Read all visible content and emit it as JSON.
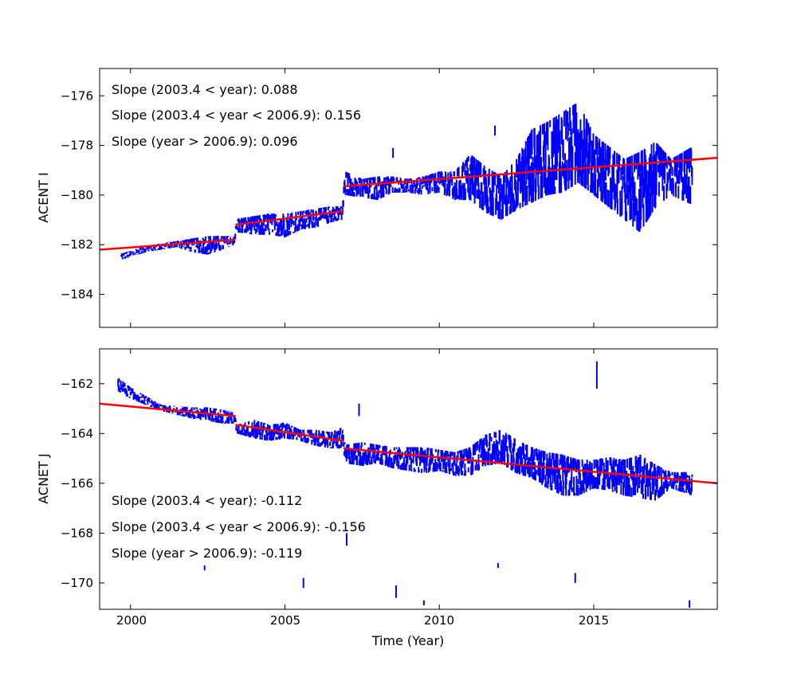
{
  "chart_data": [
    {
      "type": "scatter",
      "title": "",
      "xlabel": "",
      "ylabel": "ACENT I",
      "xlim": [
        1999.0,
        2019.0
      ],
      "ylim": [
        -185.33,
        -174.9
      ],
      "yticks": [
        -176,
        -178,
        -180,
        -182,
        -184
      ],
      "ytick_labels": [
        "−176",
        "−178",
        "−180",
        "−182",
        "−184"
      ],
      "xticks": [
        2000,
        2005,
        2010,
        2015
      ],
      "grid": false,
      "annotations": [
        "Slope (2003.4 < year):  0.088",
        "Slope (2003.4 <  year < 2006.9): 0.156",
        "Slope (year > 2006.9):  0.096"
      ],
      "series_color": "#0000ff",
      "fit_color": "#ff0000",
      "data_ranges": [
        [
          1999.7,
          -182.6,
          -182.3
        ],
        [
          2000.0,
          -182.5,
          -182.2
        ],
        [
          2000.5,
          -182.3,
          -182.0
        ],
        [
          2001.0,
          -182.2,
          -181.9
        ],
        [
          2001.5,
          -182.1,
          -181.8
        ],
        [
          2002.0,
          -182.3,
          -181.7
        ],
        [
          2002.5,
          -182.4,
          -181.6
        ],
        [
          2003.0,
          -182.2,
          -181.6
        ],
        [
          2003.35,
          -182.0,
          -181.6
        ],
        [
          2003.45,
          -181.5,
          -180.9
        ],
        [
          2004.0,
          -181.6,
          -180.8
        ],
        [
          2004.5,
          -181.6,
          -180.7
        ],
        [
          2005.0,
          -181.7,
          -180.7
        ],
        [
          2005.5,
          -181.4,
          -180.6
        ],
        [
          2006.0,
          -181.3,
          -180.5
        ],
        [
          2006.5,
          -181.1,
          -180.4
        ],
        [
          2006.85,
          -181.0,
          -180.4
        ],
        [
          2006.95,
          -180.0,
          -179.0
        ],
        [
          2007.5,
          -180.1,
          -179.3
        ],
        [
          2008.0,
          -180.2,
          -179.2
        ],
        [
          2008.5,
          -179.9,
          -179.2
        ],
        [
          2009.0,
          -179.9,
          -179.3
        ],
        [
          2009.5,
          -180.0,
          -179.2
        ],
        [
          2010.0,
          -179.9,
          -179.0
        ],
        [
          2010.5,
          -180.2,
          -179.0
        ],
        [
          2011.0,
          -180.2,
          -178.3
        ],
        [
          2011.5,
          -180.7,
          -178.8
        ],
        [
          2012.0,
          -181.0,
          -179.2
        ],
        [
          2012.5,
          -180.6,
          -178.5
        ],
        [
          2013.0,
          -180.3,
          -177.3
        ],
        [
          2013.5,
          -180.0,
          -177.0
        ],
        [
          2014.0,
          -179.9,
          -176.6
        ],
        [
          2014.5,
          -179.5,
          -176.2
        ],
        [
          2015.0,
          -180.0,
          -177.5
        ],
        [
          2015.5,
          -180.5,
          -178.0
        ],
        [
          2016.0,
          -181.0,
          -178.5
        ],
        [
          2016.5,
          -181.5,
          -178.2
        ],
        [
          2017.0,
          -180.5,
          -177.8
        ],
        [
          2017.5,
          -180.0,
          -178.5
        ],
        [
          2018.2,
          -180.4,
          -178.0
        ]
      ],
      "outliers": [
        [
          2011.8,
          -177.6,
          -177.2
        ],
        [
          2008.5,
          -178.5,
          -178.1
        ]
      ],
      "fits": [
        [
          1999.0,
          -182.2,
          2003.4,
          -181.8
        ],
        [
          2003.4,
          -181.2,
          2006.9,
          -180.65
        ],
        [
          2006.9,
          -179.65,
          2019.0,
          -178.5
        ]
      ]
    },
    {
      "type": "scatter",
      "title": "",
      "xlabel": "Time (Year)",
      "ylabel": "ACNET J",
      "xlim": [
        1999.0,
        2019.0
      ],
      "ylim": [
        -171.06,
        -160.6
      ],
      "yticks": [
        -162,
        -164,
        -166,
        -168,
        -170
      ],
      "ytick_labels": [
        "−162",
        "−164",
        "−166",
        "−168",
        "−170"
      ],
      "xticks": [
        2000,
        2005,
        2010,
        2015
      ],
      "xtick_labels": [
        "2000",
        "2005",
        "2010",
        "2015"
      ],
      "grid": false,
      "annotations": [
        "Slope (2003.4 < year):  -0.112",
        "Slope (2003.4 <  year < 2006.9): -0.156",
        "Slope (year > 2006.9):  -0.119"
      ],
      "series_color": "#0000ff",
      "fit_color": "#ff0000",
      "data_ranges": [
        [
          1999.6,
          -162.3,
          -161.7
        ],
        [
          2000.0,
          -162.6,
          -162.1
        ],
        [
          2001.0,
          -163.1,
          -162.8
        ],
        [
          2002.0,
          -163.4,
          -162.9
        ],
        [
          2002.5,
          -163.5,
          -162.9
        ],
        [
          2003.0,
          -163.6,
          -163.0
        ],
        [
          2003.35,
          -163.6,
          -163.1
        ],
        [
          2003.45,
          -164.0,
          -163.6
        ],
        [
          2004.0,
          -164.2,
          -163.4
        ],
        [
          2004.5,
          -164.3,
          -163.6
        ],
        [
          2005.0,
          -164.2,
          -163.5
        ],
        [
          2005.5,
          -164.3,
          -163.8
        ],
        [
          2006.0,
          -164.5,
          -163.8
        ],
        [
          2006.5,
          -164.6,
          -163.9
        ],
        [
          2006.85,
          -164.6,
          -163.7
        ],
        [
          2006.95,
          -165.2,
          -164.4
        ],
        [
          2007.5,
          -165.3,
          -164.3
        ],
        [
          2008.0,
          -165.2,
          -164.4
        ],
        [
          2008.5,
          -165.4,
          -164.5
        ],
        [
          2009.0,
          -165.5,
          -164.5
        ],
        [
          2009.5,
          -165.6,
          -164.5
        ],
        [
          2010.0,
          -165.5,
          -164.6
        ],
        [
          2010.5,
          -165.7,
          -164.7
        ],
        [
          2011.0,
          -165.7,
          -164.5
        ],
        [
          2011.5,
          -165.3,
          -164.0
        ],
        [
          2012.0,
          -165.2,
          -163.8
        ],
        [
          2012.5,
          -165.6,
          -164.2
        ],
        [
          2013.0,
          -165.8,
          -164.5
        ],
        [
          2013.5,
          -166.2,
          -164.7
        ],
        [
          2014.0,
          -166.5,
          -164.8
        ],
        [
          2014.5,
          -166.5,
          -165.0
        ],
        [
          2015.0,
          -166.2,
          -165.0
        ],
        [
          2015.5,
          -166.3,
          -164.9
        ],
        [
          2016.0,
          -166.5,
          -165.0
        ],
        [
          2016.5,
          -166.6,
          -164.8
        ],
        [
          2017.0,
          -166.7,
          -165.2
        ],
        [
          2017.5,
          -166.2,
          -165.5
        ],
        [
          2018.2,
          -166.5,
          -165.5
        ]
      ],
      "outliers": [
        [
          2007.4,
          -163.3,
          -162.8
        ],
        [
          2015.1,
          -162.2,
          -161.1
        ],
        [
          2007.0,
          -168.5,
          -168.0
        ],
        [
          2005.6,
          -170.2,
          -169.8
        ],
        [
          2008.6,
          -170.6,
          -170.1
        ],
        [
          2014.4,
          -170.0,
          -169.6
        ],
        [
          2011.9,
          -169.4,
          -169.2
        ],
        [
          2002.4,
          -169.5,
          -169.3
        ],
        [
          2009.5,
          -170.9,
          -170.7
        ],
        [
          2018.1,
          -171.0,
          -170.7
        ]
      ],
      "fits": [
        [
          1999.0,
          -162.8,
          2003.4,
          -163.3
        ],
        [
          2003.4,
          -163.65,
          2006.9,
          -164.3
        ],
        [
          2006.9,
          -164.6,
          2019.0,
          -166.0
        ]
      ]
    }
  ]
}
